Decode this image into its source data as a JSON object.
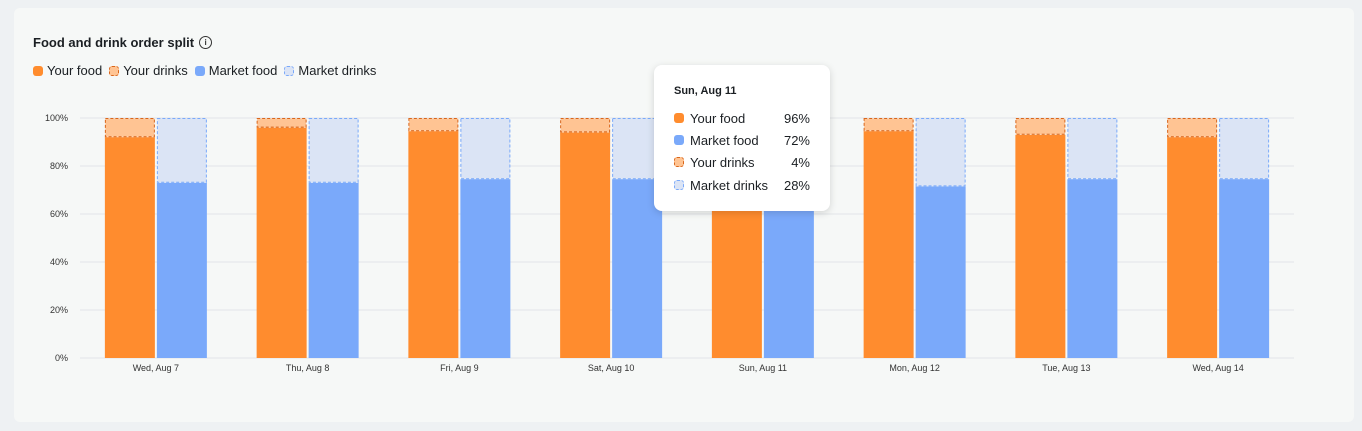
{
  "title": "Food and drink order split",
  "legend": [
    {
      "label": "Your food",
      "swatch": "solid-orange"
    },
    {
      "label": "Your drinks",
      "swatch": "dash-orange"
    },
    {
      "label": "Market food",
      "swatch": "solid-blue"
    },
    {
      "label": "Market drinks",
      "swatch": "dash-blue"
    }
  ],
  "colors": {
    "your_food": "#ff8c2e",
    "your_drinks": "#ffc493",
    "your_drinks_border": "#d9661c",
    "market_food": "#7aa9fa",
    "market_drinks": "#dbe4f5",
    "market_drinks_border": "#7aa9fa",
    "grid": "#e2e5e8"
  },
  "chart_data": {
    "type": "bar",
    "stacked": true,
    "categories": [
      "Wed, Aug 7",
      "Thu, Aug 8",
      "Fri, Aug 9",
      "Sat, Aug 10",
      "Sun, Aug 11",
      "Mon, Aug 12",
      "Tue, Aug 13",
      "Wed, Aug 14"
    ],
    "series": [
      {
        "name": "Your food",
        "stack": "you",
        "values": [
          92,
          96,
          94.5,
          94,
          96,
          94.5,
          93,
          92
        ]
      },
      {
        "name": "Your drinks",
        "stack": "you",
        "values": [
          8,
          4,
          5.5,
          6,
          4,
          5.5,
          7,
          8
        ]
      },
      {
        "name": "Market food",
        "stack": "market",
        "values": [
          73,
          73,
          74.5,
          74.5,
          72,
          71.5,
          74.5,
          74.5
        ]
      },
      {
        "name": "Market drinks",
        "stack": "market",
        "values": [
          27,
          27,
          25.5,
          25.5,
          28,
          28.5,
          25.5,
          25.5
        ]
      }
    ],
    "y_ticks": [
      "0%",
      "20%",
      "40%",
      "60%",
      "80%",
      "100%"
    ],
    "ylim": [
      0,
      100
    ],
    "grid": true
  },
  "tooltip": {
    "title": "Sun, Aug 11",
    "rows": [
      {
        "label": "Your food",
        "value": "96%",
        "swatch": "solid-orange"
      },
      {
        "label": "Market food",
        "value": "72%",
        "swatch": "solid-blue"
      },
      {
        "label": "Your drinks",
        "value": "4%",
        "swatch": "dash-orange"
      },
      {
        "label": "Market drinks",
        "value": "28%",
        "swatch": "dash-blue"
      }
    ]
  }
}
